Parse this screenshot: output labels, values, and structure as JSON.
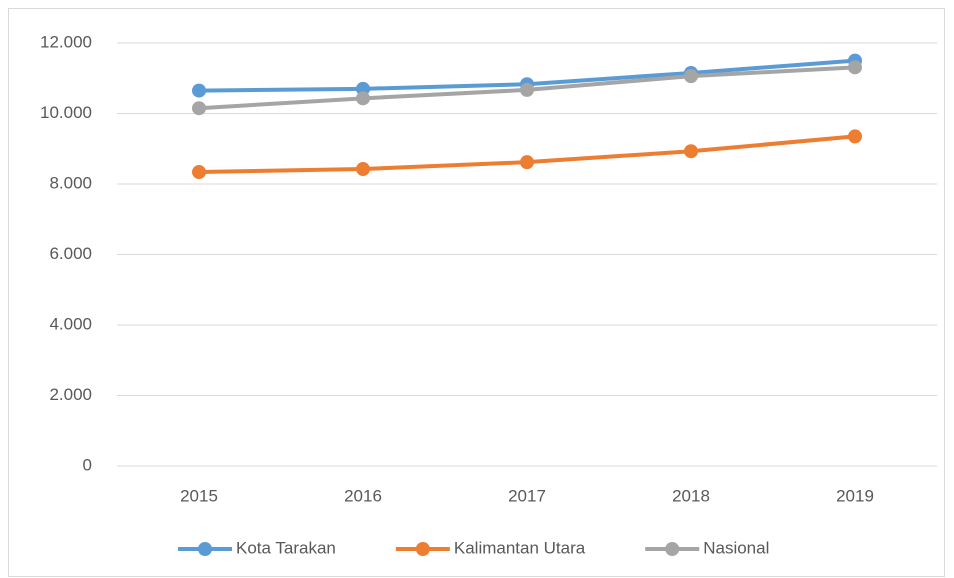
{
  "chart_data": {
    "type": "line",
    "categories": [
      "2015",
      "2016",
      "2017",
      "2018",
      "2019"
    ],
    "series": [
      {
        "name": "Kota Tarakan",
        "color": "#5b9bd5",
        "values": [
          10650,
          10700,
          10830,
          11150,
          11500
        ]
      },
      {
        "name": "Kalimantan Utara",
        "color": "#ed7d31",
        "values": [
          8340,
          8425,
          8620,
          8930,
          9350
        ]
      },
      {
        "name": "Nasional",
        "color": "#a5a5a5",
        "values": [
          10150,
          10430,
          10670,
          11060,
          11310
        ]
      }
    ],
    "ylim": [
      0,
      12000
    ],
    "yticks": [
      0,
      {
        "value": 2000,
        "label": "2.000"
      },
      {
        "value": 4000,
        "label": "4.000"
      },
      {
        "value": 6000,
        "label": "6.000"
      },
      {
        "value": 8000,
        "label": "8.000"
      },
      {
        "value": 10000,
        "label": "10.000"
      },
      {
        "value": 12000,
        "label": "12.000"
      }
    ],
    "grid": true,
    "legend": "bottom"
  }
}
